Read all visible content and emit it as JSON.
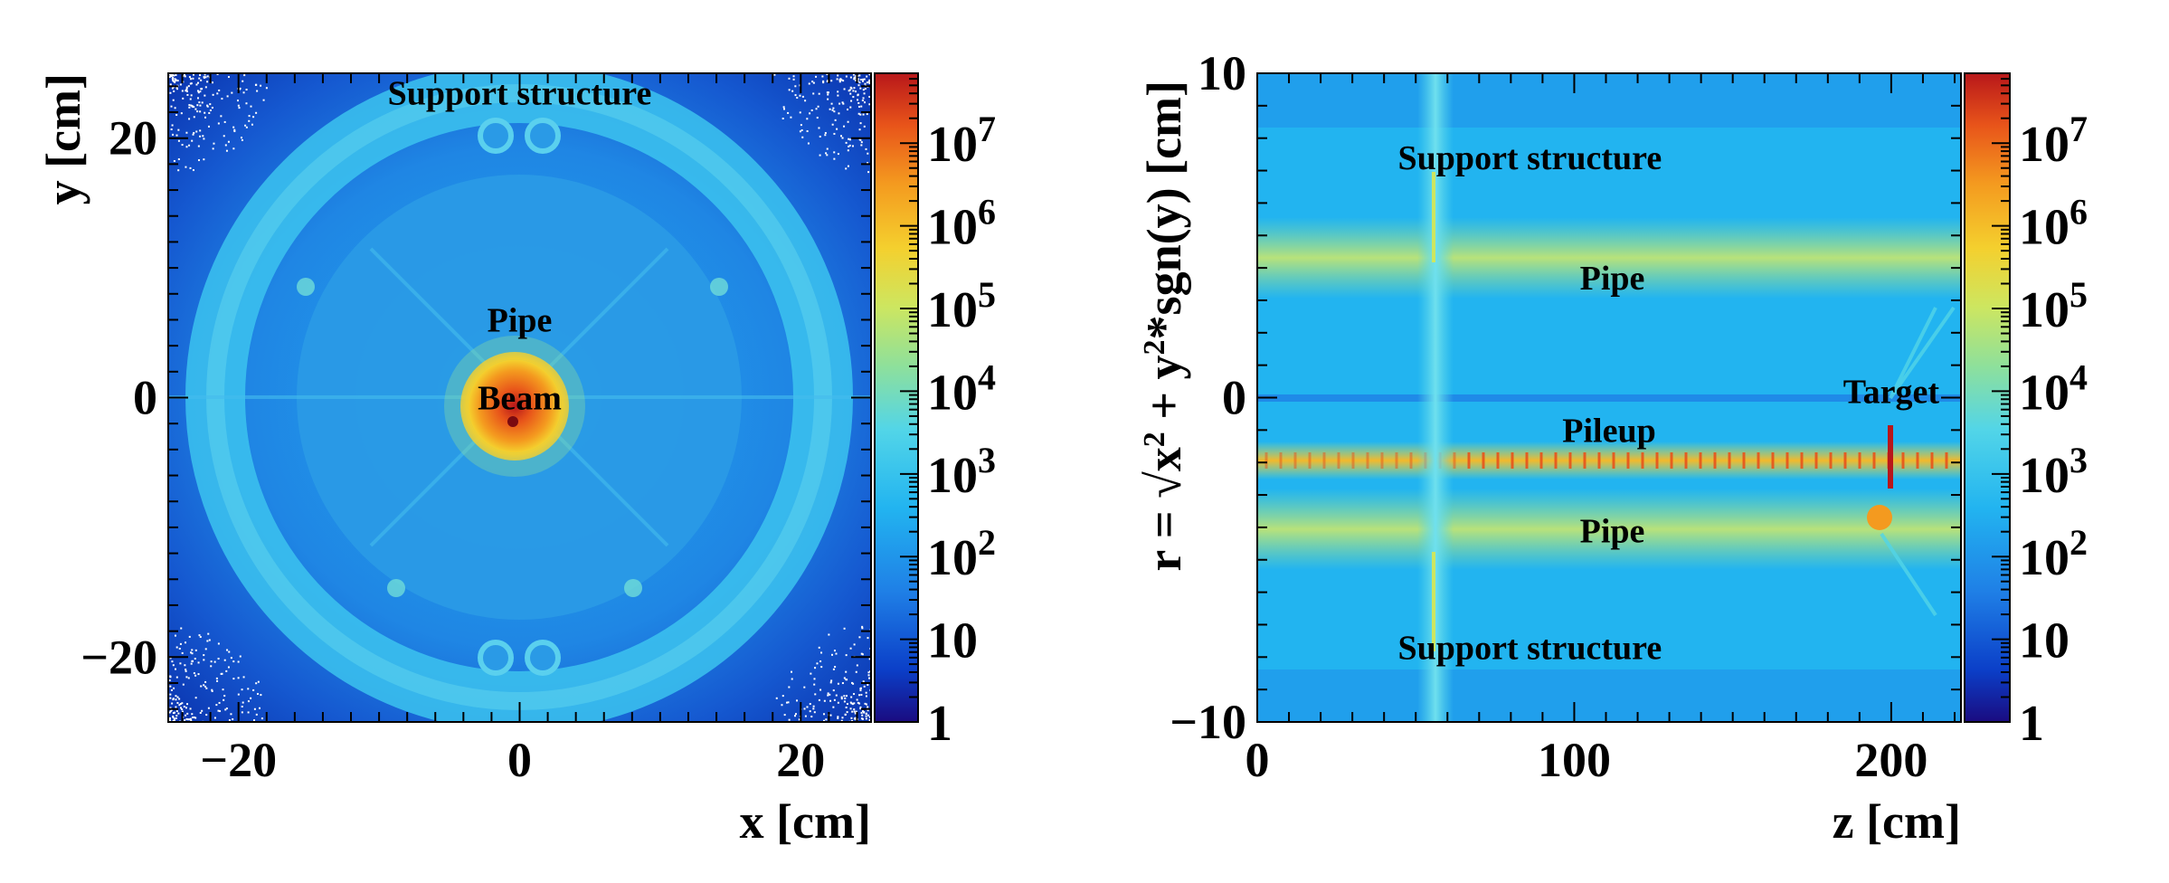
{
  "colors": {
    "palette": [
      "#1a0b80",
      "#0b3fc8",
      "#1f7fe6",
      "#22b4f0",
      "#52d5e8",
      "#8fe09a",
      "#cde660",
      "#f4d02e",
      "#f49a1f",
      "#e8541a",
      "#b8171a"
    ]
  },
  "chart_data": [
    {
      "type": "heatmap",
      "title": "",
      "xlabel": "x [cm]",
      "ylabel": "y [cm]",
      "xlim": [
        -25,
        25
      ],
      "ylim": [
        -25,
        25
      ],
      "xticks": [
        -20,
        0,
        20
      ],
      "xtick_labels": [
        "−20",
        "0",
        "20"
      ],
      "yticks": [
        -20,
        0,
        20
      ],
      "ytick_labels": [
        "−20",
        "0",
        "20"
      ],
      "colorbar": {
        "scale": "log",
        "range": [
          1,
          70000000
        ],
        "ticks": [
          1,
          10,
          100,
          1000,
          10000,
          100000,
          1000000,
          10000000
        ]
      },
      "colorbar_labels": [
        {
          "base": "1",
          "exp": ""
        },
        {
          "base": "10",
          "exp": ""
        },
        {
          "base": "10",
          "exp": "2"
        },
        {
          "base": "10",
          "exp": "3"
        },
        {
          "base": "10",
          "exp": "4"
        },
        {
          "base": "10",
          "exp": "5"
        },
        {
          "base": "10",
          "exp": "6"
        },
        {
          "base": "10",
          "exp": "7"
        }
      ],
      "annotations": [
        {
          "text": "Support structure",
          "x": 0,
          "y": 23.5
        },
        {
          "text": "Pipe",
          "x": 0,
          "y": 6
        },
        {
          "text": "Beam",
          "x": 0,
          "y": 0
        }
      ],
      "features": {
        "beam_center": [
          -0.3,
          -1.8
        ],
        "pipe_radius": 3.6,
        "inner_disk_radius": 17,
        "support_ring_inner": 19,
        "support_ring_outer": 24
      }
    },
    {
      "type": "heatmap",
      "title": "",
      "xlabel": "z [cm]",
      "ylabel": "r = √(x² + y²)*sgn(y) [cm]",
      "ylabel_parts": {
        "prefix": "r = ",
        "radicand": "x",
        "sup1": "2",
        "mid": " + y",
        "sup2": "2",
        "suffix": "*sgn(y) [cm]"
      },
      "xlim": [
        0,
        222
      ],
      "ylim": [
        -10,
        10
      ],
      "xticks": [
        0,
        100,
        200
      ],
      "xtick_labels": [
        "0",
        "100",
        "200"
      ],
      "yticks": [
        -10,
        0,
        10
      ],
      "ytick_labels": [
        "−10",
        "0",
        "10"
      ],
      "colorbar": {
        "scale": "log",
        "range": [
          1,
          70000000
        ],
        "ticks": [
          1,
          10,
          100,
          1000,
          10000,
          100000,
          1000000,
          10000000
        ]
      },
      "colorbar_labels": [
        {
          "base": "1",
          "exp": ""
        },
        {
          "base": "10",
          "exp": ""
        },
        {
          "base": "10",
          "exp": "2"
        },
        {
          "base": "10",
          "exp": "3"
        },
        {
          "base": "10",
          "exp": "4"
        },
        {
          "base": "10",
          "exp": "5"
        },
        {
          "base": "10",
          "exp": "6"
        },
        {
          "base": "10",
          "exp": "7"
        }
      ],
      "annotations": [
        {
          "text": "Support structure",
          "x": 86,
          "y": 7.4
        },
        {
          "text": "Pipe",
          "x": 112,
          "y": 3.7
        },
        {
          "text": "Pileup",
          "x": 111,
          "y": -1.0
        },
        {
          "text": "Target",
          "x": 200,
          "y": 0.2
        },
        {
          "text": "Pipe",
          "x": 112,
          "y": -4.1
        },
        {
          "text": "Support structure",
          "x": 86,
          "y": -7.7
        }
      ],
      "features": {
        "support_z": 56,
        "pipe_r": [
          3.6,
          -4.0
        ],
        "pileup_r": -2.0,
        "target_z": 200
      }
    }
  ]
}
